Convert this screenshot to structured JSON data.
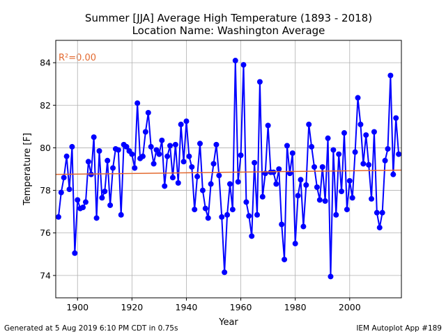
{
  "chart_data": {
    "type": "line",
    "title": "Summer [JJA] Average High Temperature (1893 - 2018)",
    "subtitle": "Location Name: Washington Average",
    "xlabel": "Year",
    "ylabel": "Temperature [F]",
    "annotation": "R²=0.00",
    "footer_left": "Generated at 5 Aug 2019 6:10 PM CDT in 0.75s",
    "footer_right": "IEM Autoplot App #189",
    "xlim": [
      1892,
      2019
    ],
    "ylim": [
      72.95,
      85.05
    ],
    "xticks": [
      1900,
      1920,
      1940,
      1960,
      1980,
      2000
    ],
    "yticks": [
      74,
      76,
      78,
      80,
      82,
      84
    ],
    "grid": true,
    "series": [
      {
        "color": "#0000ff",
        "x": [
          1893,
          1894,
          1895,
          1896,
          1897,
          1898,
          1899,
          1900,
          1901,
          1902,
          1903,
          1904,
          1905,
          1906,
          1907,
          1908,
          1909,
          1910,
          1911,
          1912,
          1913,
          1914,
          1915,
          1916,
          1917,
          1918,
          1919,
          1920,
          1921,
          1922,
          1923,
          1924,
          1925,
          1926,
          1927,
          1928,
          1929,
          1930,
          1931,
          1932,
          1933,
          1934,
          1935,
          1936,
          1937,
          1938,
          1939,
          1940,
          1941,
          1942,
          1943,
          1944,
          1945,
          1946,
          1947,
          1948,
          1949,
          1950,
          1951,
          1952,
          1953,
          1954,
          1955,
          1956,
          1957,
          1958,
          1959,
          1960,
          1961,
          1962,
          1963,
          1964,
          1965,
          1966,
          1967,
          1968,
          1969,
          1970,
          1971,
          1972,
          1973,
          1974,
          1975,
          1976,
          1977,
          1978,
          1979,
          1980,
          1981,
          1982,
          1983,
          1984,
          1985,
          1986,
          1987,
          1988,
          1989,
          1990,
          1991,
          1992,
          1993,
          1994,
          1995,
          1996,
          1997,
          1998,
          1999,
          2000,
          2001,
          2002,
          2003,
          2004,
          2005,
          2006,
          2007,
          2008,
          2009,
          2010,
          2011,
          2012,
          2013,
          2014,
          2015,
          2016,
          2017,
          2018
        ],
        "values": [
          76.75,
          77.9,
          78.6,
          79.6,
          78.05,
          80.05,
          75.05,
          77.55,
          77.15,
          77.2,
          77.45,
          79.35,
          78.75,
          80.5,
          76.7,
          79.85,
          77.65,
          77.95,
          79.4,
          77.3,
          79.05,
          79.95,
          79.9,
          76.85,
          80.15,
          80.05,
          79.85,
          79.7,
          79.05,
          82.1,
          79.5,
          79.6,
          80.75,
          81.65,
          80.05,
          79.25,
          79.9,
          79.7,
          80.35,
          78.2,
          79.6,
          80.1,
          78.6,
          80.15,
          78.35,
          81.1,
          79.35,
          81.25,
          79.6,
          79.1,
          77.1,
          78.65,
          80.2,
          78.0,
          77.15,
          76.7,
          78.3,
          79.25,
          80.15,
          78.7,
          76.75,
          74.15,
          76.85,
          78.3,
          77.1,
          84.1,
          78.4,
          79.65,
          83.9,
          77.45,
          76.8,
          75.85,
          79.3,
          76.85,
          83.1,
          77.7,
          78.8,
          81.05,
          78.85,
          78.85,
          78.3,
          79.0,
          76.4,
          74.75,
          80.1,
          78.8,
          79.75,
          75.5,
          77.75,
          78.5,
          76.3,
          78.25,
          81.1,
          80.05,
          79.1,
          78.15,
          77.55,
          79.1,
          77.5,
          80.45,
          73.95,
          79.9,
          76.85,
          79.7,
          77.95,
          80.7,
          77.1,
          78.45,
          77.65,
          79.8,
          82.35,
          81.1,
          79.25,
          80.6,
          79.2,
          77.6,
          80.75,
          76.95,
          76.25,
          76.95,
          79.4,
          79.95,
          83.4,
          78.75,
          81.4,
          79.7
        ]
      }
    ],
    "trendline": {
      "color": "#e3692f",
      "x": [
        1892,
        2019
      ],
      "values": [
        78.75,
        78.95
      ]
    }
  }
}
